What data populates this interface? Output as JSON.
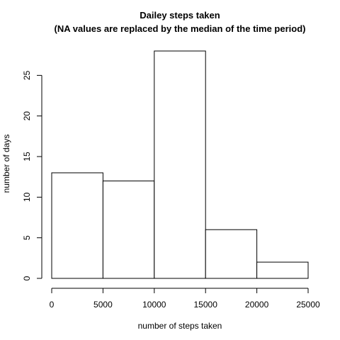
{
  "chart_data": {
    "type": "bar",
    "title": "Dailey steps taken",
    "subtitle": "(NA values are replaced by the median of the time period)",
    "xlabel": "number of steps taken",
    "ylabel": "number of days",
    "bins": [
      {
        "start": 0,
        "end": 5000,
        "count": 13
      },
      {
        "start": 5000,
        "end": 10000,
        "count": 12
      },
      {
        "start": 10000,
        "end": 15000,
        "count": 28
      },
      {
        "start": 15000,
        "end": 20000,
        "count": 6
      },
      {
        "start": 20000,
        "end": 25000,
        "count": 2
      }
    ],
    "xlim": [
      0,
      25000
    ],
    "ylim": [
      0,
      28
    ],
    "xticks": [
      0,
      5000,
      10000,
      15000,
      20000,
      25000
    ],
    "yticks": [
      0,
      5,
      10,
      15,
      20,
      25
    ],
    "xtick_labels": [
      "0",
      "5000",
      "10000",
      "15000",
      "20000",
      "25000"
    ],
    "ytick_labels": [
      "0",
      "5",
      "10",
      "15",
      "20",
      "25"
    ],
    "grid": false,
    "colors": {
      "bar_fill": "#ffffff",
      "bar_stroke": "#000000"
    }
  }
}
